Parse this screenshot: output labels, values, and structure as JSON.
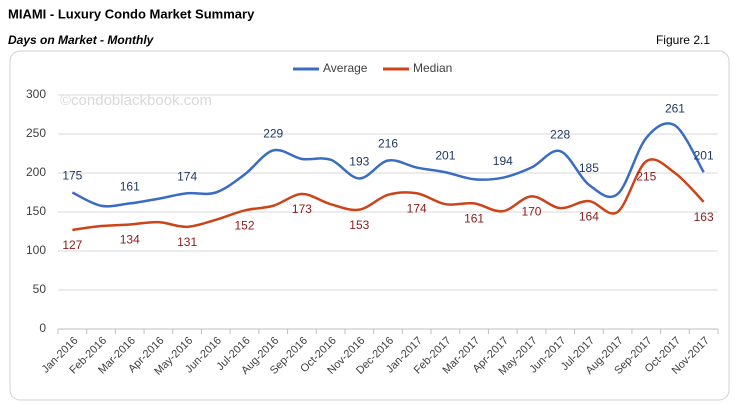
{
  "chart_data": {
    "type": "line",
    "title": "MIAMI - Luxury Condo Market Summary",
    "subtitle": "Days on Market - Monthly",
    "figure_label": "Figure 2.1",
    "watermark": "©condoblackbook.com",
    "categories": [
      "Jan-2016",
      "Feb-2016",
      "Mar-2016",
      "Apr-2016",
      "May-2016",
      "Jun-2016",
      "Jul-2016",
      "Aug-2016",
      "Sep-2016",
      "Oct-2016",
      "Nov-2016",
      "Dec-2016",
      "Jan-2017",
      "Feb-2017",
      "Mar-2017",
      "Apr-2017",
      "May-2017",
      "Jun-2017",
      "Jul-2017",
      "Aug-2017",
      "Sep-2017",
      "Oct-2017",
      "Nov-2017"
    ],
    "series": [
      {
        "name": "Average",
        "color": "#3b6cc4",
        "label_color": "#1f3864",
        "values": [
          175,
          158,
          161,
          167,
          174,
          175,
          198,
          229,
          218,
          217,
          193,
          216,
          207,
          201,
          192,
          194,
          207,
          228,
          185,
          173,
          245,
          261,
          201
        ],
        "value_labels": [
          "175",
          null,
          "161",
          null,
          "174",
          null,
          null,
          "229",
          null,
          null,
          "193",
          "216",
          null,
          "201",
          null,
          "194",
          null,
          "228",
          "185",
          null,
          null,
          "261",
          "201"
        ]
      },
      {
        "name": "Median",
        "color": "#cc4419",
        "label_color": "#8b1a1a",
        "values": [
          127,
          132,
          134,
          137,
          131,
          140,
          152,
          158,
          173,
          160,
          153,
          172,
          174,
          160,
          161,
          151,
          170,
          155,
          164,
          150,
          215,
          200,
          163
        ],
        "value_labels": [
          "127",
          null,
          "134",
          null,
          "131",
          null,
          "152",
          null,
          "173",
          null,
          "153",
          null,
          "174",
          null,
          "161",
          null,
          "170",
          null,
          "164",
          null,
          "215",
          null,
          "163"
        ]
      }
    ],
    "ylim": [
      0,
      300
    ],
    "yticks": [
      0,
      50,
      100,
      150,
      200,
      250,
      300
    ],
    "grid": true,
    "legend": "top"
  }
}
